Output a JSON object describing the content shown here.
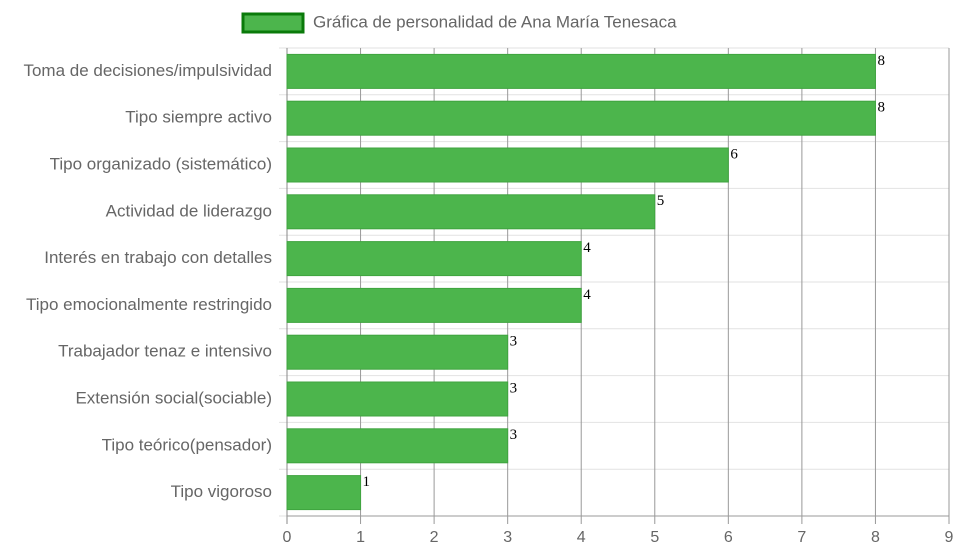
{
  "chart_data": {
    "type": "bar",
    "orientation": "horizontal",
    "categories": [
      "Toma de decisiones/impulsividad",
      "Tipo siempre activo",
      "Tipo organizado (sistemático)",
      "Actividad de liderazgo",
      "Interés en trabajo con detalles",
      "Tipo emocionalmente restringido",
      "Trabajador tenaz e intensivo",
      "Extensión social(sociable)",
      "Tipo teórico(pensador)",
      "Tipo vigoroso"
    ],
    "series": [
      {
        "name": "Gráfica de personalidad de Ana María Tenesaca",
        "color": "#4cb54c",
        "values": [
          8,
          8,
          6,
          5,
          4,
          4,
          3,
          3,
          3,
          1
        ]
      }
    ],
    "xlim": [
      0,
      9
    ],
    "xticks": [
      0,
      1,
      2,
      3,
      4,
      5,
      6,
      7,
      8,
      9
    ],
    "grid": true,
    "legend": "top"
  }
}
